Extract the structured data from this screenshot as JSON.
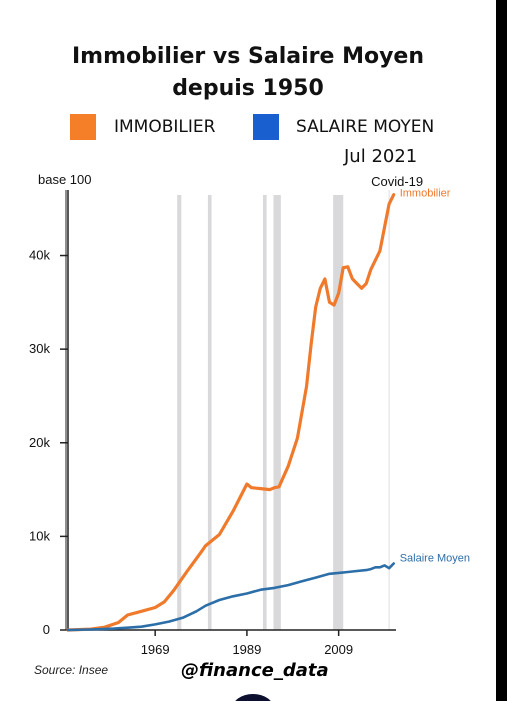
{
  "title_line1": "Immobilier vs Salaire Moyen",
  "title_line2": "depuis 1950",
  "legend": [
    {
      "label": "IMMOBILIER",
      "color": "#f57f29"
    },
    {
      "label": "SALAIRE MOYEN",
      "color": "#1a5fcf"
    }
  ],
  "date_label": "Jul 2021",
  "base_label": "base 100",
  "source": "Source: Insee",
  "handle": "@finance_data",
  "chart_data": {
    "type": "line",
    "xlim": [
      1950,
      2021.5
    ],
    "ylim": [
      0,
      47000
    ],
    "x_ticks": [
      1969,
      1989,
      2009
    ],
    "x_tick_labels": [
      "1969",
      "1989",
      "2009"
    ],
    "y_ticks": [
      0,
      10000,
      20000,
      30000,
      40000
    ],
    "y_tick_labels": [
      "0",
      "10k",
      "20k",
      "30k",
      "40k"
    ],
    "grid": false,
    "recession_bands": [
      [
        1973.8,
        1974.7
      ],
      [
        1980.5,
        1981.3
      ],
      [
        1992.5,
        1993.3
      ],
      [
        1994.8,
        1996.4
      ],
      [
        2007.8,
        2010.0
      ]
    ],
    "covid_line_x": 2020.0,
    "covid_label": "Covid-19",
    "series": [
      {
        "name": "Immobilier",
        "color": "#f07a2c",
        "x": [
          1950,
          1955,
          1958,
          1961,
          1963,
          1966,
          1969,
          1971,
          1973,
          1976,
          1979,
          1980,
          1983,
          1986,
          1989,
          1990,
          1992,
          1994,
          1995,
          1996,
          1998,
          2000,
          2002,
          2003,
          2004,
          2005,
          2006,
          2007,
          2008,
          2009,
          2010,
          2011,
          2012,
          2013,
          2014,
          2015,
          2016,
          2017,
          2018,
          2019,
          2020,
          2021
        ],
        "y": [
          0,
          100,
          300,
          800,
          1600,
          2000,
          2400,
          3000,
          4200,
          6300,
          8300,
          9000,
          10200,
          12700,
          15600,
          15200,
          15100,
          15000,
          15200,
          15300,
          17500,
          20500,
          26000,
          30500,
          34500,
          36500,
          37500,
          35000,
          34700,
          36000,
          38700,
          38800,
          37500,
          37000,
          36500,
          37000,
          38500,
          39500,
          40500,
          43000,
          45500,
          46500
        ]
      },
      {
        "name": "Salaire Moyen",
        "color": "#2c6ea8",
        "x": [
          1950,
          1955,
          1960,
          1963,
          1966,
          1969,
          1972,
          1975,
          1978,
          1980,
          1983,
          1986,
          1989,
          1992,
          1995,
          1998,
          2001,
          2004,
          2007,
          2009,
          2011,
          2013,
          2015,
          2016,
          2017,
          2018,
          2019,
          2020,
          2021
        ],
        "y": [
          0,
          50,
          150,
          250,
          350,
          600,
          900,
          1300,
          2000,
          2600,
          3200,
          3600,
          3900,
          4300,
          4500,
          4800,
          5200,
          5600,
          6000,
          6100,
          6200,
          6300,
          6400,
          6500,
          6700,
          6700,
          6900,
          6600,
          7100
        ]
      }
    ]
  }
}
